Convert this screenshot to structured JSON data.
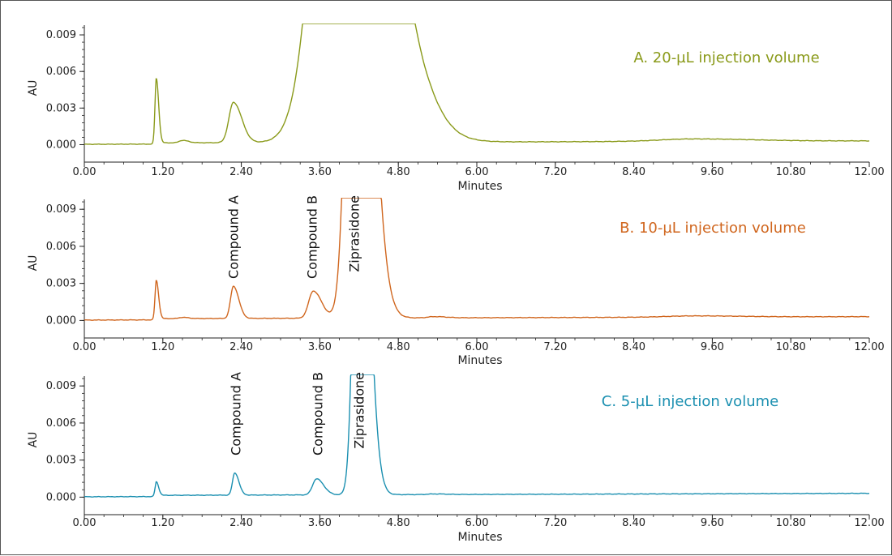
{
  "chart_data": [
    {
      "type": "line",
      "panel": "A",
      "title": "A. 20-µL injection volume",
      "color": "#8a9a1a",
      "xlabel": "Minutes",
      "ylabel": "AU",
      "xlim": [
        0,
        12
      ],
      "ylim": [
        -0.0005,
        0.0098
      ],
      "x_ticks": [
        "0.00",
        "1.20",
        "2.40",
        "3.60",
        "4.80",
        "6.00",
        "7.20",
        "8.40",
        "9.60",
        "10.80",
        "12.00"
      ],
      "y_ticks": [
        "0.000",
        "0.003",
        "0.006",
        "0.009"
      ],
      "peaks": [
        {
          "rt": 1.1,
          "height": 0.0053,
          "width": 0.02
        },
        {
          "rt": 1.5,
          "height": 0.0002,
          "width": 0.05
        },
        {
          "rt": 2.28,
          "height": 0.0033,
          "width": 0.07
        },
        {
          "rt": 3.95,
          "height": 0.05,
          "width": 0.34
        },
        {
          "rt": 5.35,
          "height": 0.0002,
          "width": 0.12
        },
        {
          "rt": 9.3,
          "height": 0.0002,
          "width": 0.5
        }
      ],
      "peak_labels": []
    },
    {
      "type": "line",
      "panel": "B",
      "title": "B. 10-µL injection volume",
      "color": "#d0661e",
      "xlabel": "Minutes",
      "ylabel": "AU",
      "xlim": [
        0,
        12
      ],
      "ylim": [
        -0.0005,
        0.0098
      ],
      "x_ticks": [
        "0.00",
        "1.20",
        "2.40",
        "3.60",
        "4.80",
        "6.00",
        "7.20",
        "8.40",
        "9.60",
        "10.80",
        "12.00"
      ],
      "y_ticks": [
        "0.000",
        "0.003",
        "0.006",
        "0.009"
      ],
      "peaks": [
        {
          "rt": 1.1,
          "height": 0.0031,
          "width": 0.02
        },
        {
          "rt": 1.5,
          "height": 0.0001,
          "width": 0.05
        },
        {
          "rt": 2.28,
          "height": 0.0026,
          "width": 0.045
        },
        {
          "rt": 3.5,
          "height": 0.0022,
          "width": 0.07
        },
        {
          "rt": 4.15,
          "height": 0.05,
          "width": 0.12
        },
        {
          "rt": 5.35,
          "height": 0.0001,
          "width": 0.1
        },
        {
          "rt": 9.3,
          "height": 0.0001,
          "width": 0.4
        }
      ],
      "peak_labels": [
        "Compound A",
        "Compound B",
        "Ziprasidone"
      ]
    },
    {
      "type": "line",
      "panel": "C",
      "title": "C. 5-µL injection volume",
      "color": "#1a8fb0",
      "xlabel": "Minutes",
      "ylabel": "AU",
      "xlim": [
        0,
        12
      ],
      "ylim": [
        -0.0005,
        0.0098
      ],
      "x_ticks": [
        "0.00",
        "1.20",
        "2.40",
        "3.60",
        "4.80",
        "6.00",
        "7.20",
        "8.40",
        "9.60",
        "10.80",
        "12.00"
      ],
      "y_ticks": [
        "0.000",
        "0.003",
        "0.006",
        "0.009"
      ],
      "peaks": [
        {
          "rt": 1.1,
          "height": 0.0011,
          "width": 0.02
        },
        {
          "rt": 2.3,
          "height": 0.0018,
          "width": 0.035
        },
        {
          "rt": 3.55,
          "height": 0.0013,
          "width": 0.06
        },
        {
          "rt": 4.2,
          "height": 0.035,
          "width": 0.08
        },
        {
          "rt": 5.35,
          "height": 5e-05,
          "width": 0.1
        }
      ],
      "peak_labels": [
        "Compound A",
        "Compound B",
        "Ziprasidone"
      ]
    }
  ]
}
